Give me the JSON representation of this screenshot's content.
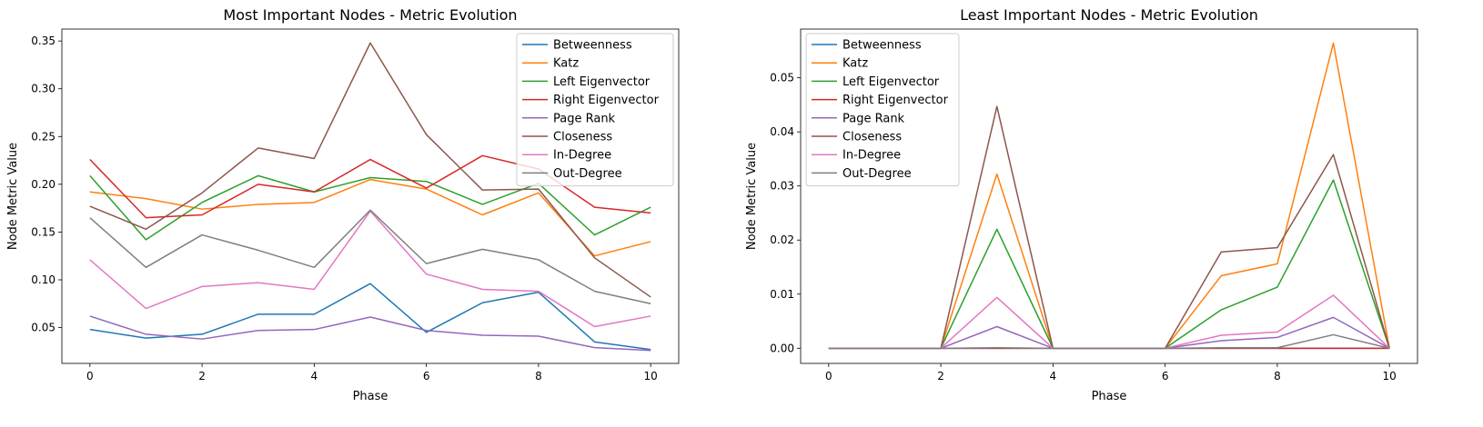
{
  "chart_data": [
    {
      "type": "line",
      "title": "Most Important Nodes - Metric Evolution",
      "xlabel": "Phase",
      "ylabel": "Node Metric Value",
      "x": [
        0,
        1,
        2,
        3,
        4,
        5,
        6,
        7,
        8,
        9,
        10
      ],
      "xlim": [
        -0.5,
        10.5
      ],
      "ylim": [
        0.0125,
        0.3625
      ],
      "xticks": [
        0,
        2,
        4,
        6,
        8,
        10
      ],
      "yticks": [
        0.05,
        0.1,
        0.15,
        0.2,
        0.25,
        0.3,
        0.35
      ],
      "ytick_labels": [
        "0.05",
        "0.10",
        "0.15",
        "0.20",
        "0.25",
        "0.30",
        "0.35"
      ],
      "grid": false,
      "legend_position": "top-right",
      "series": [
        {
          "name": "Betweenness",
          "color": "#1f77b4",
          "values": [
            0.048,
            0.039,
            0.043,
            0.064,
            0.064,
            0.096,
            0.045,
            0.076,
            0.087,
            0.035,
            0.027
          ]
        },
        {
          "name": "Katz",
          "color": "#ff7f0e",
          "values": [
            0.192,
            0.185,
            0.174,
            0.179,
            0.181,
            0.205,
            0.195,
            0.168,
            0.191,
            0.125,
            0.14
          ]
        },
        {
          "name": "Left Eigenvector",
          "color": "#2ca02c",
          "values": [
            0.209,
            0.142,
            0.181,
            0.209,
            0.192,
            0.207,
            0.203,
            0.179,
            0.201,
            0.147,
            0.176
          ]
        },
        {
          "name": "Right Eigenvector",
          "color": "#d62728",
          "values": [
            0.226,
            0.165,
            0.168,
            0.2,
            0.192,
            0.226,
            0.196,
            0.23,
            0.216,
            0.176,
            0.17
          ]
        },
        {
          "name": "Page Rank",
          "color": "#9467bd",
          "values": [
            0.062,
            0.043,
            0.038,
            0.047,
            0.048,
            0.061,
            0.047,
            0.042,
            0.041,
            0.029,
            0.026
          ]
        },
        {
          "name": "Closeness",
          "color": "#8c564b",
          "values": [
            0.177,
            0.153,
            0.191,
            0.238,
            0.227,
            0.348,
            0.252,
            0.194,
            0.195,
            0.123,
            0.082
          ]
        },
        {
          "name": "In-Degree",
          "color": "#e377c2",
          "values": [
            0.121,
            0.07,
            0.093,
            0.097,
            0.09,
            0.172,
            0.106,
            0.09,
            0.088,
            0.051,
            0.062
          ]
        },
        {
          "name": "Out-Degree",
          "color": "#7f7f7f",
          "values": [
            0.165,
            0.113,
            0.147,
            0.131,
            0.113,
            0.173,
            0.117,
            0.132,
            0.121,
            0.088,
            0.075
          ]
        }
      ]
    },
    {
      "type": "line",
      "title": "Least Important Nodes - Metric Evolution",
      "xlabel": "Phase",
      "ylabel": "Node Metric Value",
      "x": [
        0,
        1,
        2,
        3,
        4,
        5,
        6,
        7,
        8,
        9,
        10
      ],
      "xlim": [
        -0.5,
        10.5
      ],
      "ylim": [
        -0.0028,
        0.059
      ],
      "xticks": [
        0,
        2,
        4,
        6,
        8,
        10
      ],
      "yticks": [
        0.0,
        0.01,
        0.02,
        0.03,
        0.04,
        0.05
      ],
      "ytick_labels": [
        "0.00",
        "0.01",
        "0.02",
        "0.03",
        "0.04",
        "0.05"
      ],
      "grid": false,
      "legend_position": "top-left",
      "series": [
        {
          "name": "Betweenness",
          "color": "#1f77b4",
          "values": [
            0,
            0,
            0,
            0,
            0,
            0,
            0,
            0,
            0,
            0,
            0
          ]
        },
        {
          "name": "Katz",
          "color": "#ff7f0e",
          "values": [
            0,
            0,
            0,
            0.0322,
            0,
            0,
            0,
            0.0134,
            0.0156,
            0.0564,
            0
          ]
        },
        {
          "name": "Left Eigenvector",
          "color": "#2ca02c",
          "values": [
            0,
            0,
            0,
            0.022,
            0,
            0,
            0,
            0.0071,
            0.0113,
            0.0311,
            0
          ]
        },
        {
          "name": "Right Eigenvector",
          "color": "#d62728",
          "values": [
            0,
            0,
            0,
            0,
            0,
            0,
            0,
            0,
            0,
            0,
            0
          ]
        },
        {
          "name": "Page Rank",
          "color": "#9467bd",
          "values": [
            0,
            0,
            0,
            0.004,
            0,
            0,
            0,
            0.0014,
            0.002,
            0.0057,
            0
          ]
        },
        {
          "name": "Closeness",
          "color": "#8c564b",
          "values": [
            0,
            0,
            0,
            0.0447,
            0,
            0,
            0,
            0.0178,
            0.0186,
            0.0358,
            0
          ]
        },
        {
          "name": "In-Degree",
          "color": "#e377c2",
          "values": [
            0,
            0,
            0,
            0.0094,
            0,
            0,
            0,
            0.0024,
            0.003,
            0.0098,
            0
          ]
        },
        {
          "name": "Out-Degree",
          "color": "#7f7f7f",
          "values": [
            0,
            0,
            0,
            0.0001,
            0,
            0,
            0,
            0.0001,
            0.0001,
            0.0025,
            0
          ]
        }
      ]
    }
  ]
}
